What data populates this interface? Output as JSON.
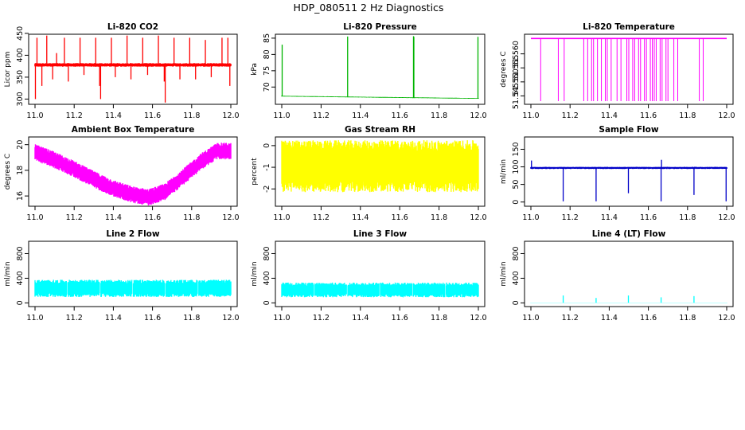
{
  "figure": {
    "title": "HDP_080511  2 Hz Diagnostics"
  },
  "chart_data": [
    {
      "type": "line",
      "title": "Li-820 CO2",
      "ylabel": "Licor ppm",
      "color": "#ff0000",
      "xlim": [
        11.0,
        12.0
      ],
      "ylim": [
        288,
        448
      ],
      "xticks": [
        "11.0",
        "11.2",
        "11.4",
        "11.6",
        "11.8",
        "12.0"
      ],
      "yticks": [
        300,
        350,
        400,
        450
      ],
      "base": 378,
      "noise": 4,
      "signal": "flat",
      "spikes": [
        {
          "x": 11.002,
          "v": 300
        },
        {
          "x": 11.01,
          "v": 440
        },
        {
          "x": 11.035,
          "v": 330
        },
        {
          "x": 11.06,
          "v": 445
        },
        {
          "x": 11.09,
          "v": 345
        },
        {
          "x": 11.11,
          "v": 405
        },
        {
          "x": 11.15,
          "v": 440
        },
        {
          "x": 11.17,
          "v": 340
        },
        {
          "x": 11.23,
          "v": 440
        },
        {
          "x": 11.25,
          "v": 355
        },
        {
          "x": 11.31,
          "v": 440
        },
        {
          "x": 11.33,
          "v": 330
        },
        {
          "x": 11.335,
          "v": 300
        },
        {
          "x": 11.39,
          "v": 440
        },
        {
          "x": 11.41,
          "v": 350
        },
        {
          "x": 11.47,
          "v": 445
        },
        {
          "x": 11.49,
          "v": 345
        },
        {
          "x": 11.55,
          "v": 440
        },
        {
          "x": 11.575,
          "v": 355
        },
        {
          "x": 11.63,
          "v": 445
        },
        {
          "x": 11.66,
          "v": 340
        },
        {
          "x": 11.665,
          "v": 292
        },
        {
          "x": 11.71,
          "v": 440
        },
        {
          "x": 11.74,
          "v": 345
        },
        {
          "x": 11.79,
          "v": 440
        },
        {
          "x": 11.82,
          "v": 345
        },
        {
          "x": 11.87,
          "v": 435
        },
        {
          "x": 11.9,
          "v": 350
        },
        {
          "x": 11.955,
          "v": 440
        },
        {
          "x": 11.985,
          "v": 440
        },
        {
          "x": 11.995,
          "v": 330
        }
      ]
    },
    {
      "type": "line",
      "title": "Li-820 Pressure",
      "ylabel": "kPa",
      "color": "#00b400",
      "xlim": [
        11.0,
        12.0
      ],
      "ylim": [
        64.7,
        86.2
      ],
      "xticks": [
        "11.0",
        "11.2",
        "11.4",
        "11.6",
        "11.8",
        "12.0"
      ],
      "yticks": [
        70,
        75,
        80,
        85
      ],
      "base_start": 67.2,
      "base_end": 66.5,
      "noise": 0.12,
      "signal": "flat",
      "spikes": [
        {
          "x": 11.002,
          "v": 83.0
        },
        {
          "x": 11.335,
          "v": 85.5
        },
        {
          "x": 11.67,
          "v": 85.6
        },
        {
          "x": 11.672,
          "v": 85.4
        },
        {
          "x": 11.998,
          "v": 85.4
        }
      ]
    },
    {
      "type": "line",
      "title": "Li-820 Temperature",
      "ylabel": "degrees C",
      "color": "#ff00ff",
      "xlim": [
        11.0,
        12.0
      ],
      "ylim": [
        51.542,
        51.567
      ],
      "xticks": [
        "11.0",
        "11.2",
        "11.4",
        "11.6",
        "11.8",
        "12.0"
      ],
      "yticks": [
        "51.545",
        "51.550",
        "51.555",
        "51.560"
      ],
      "base": 51.5655,
      "noise": 0,
      "signal": "flat",
      "dropouts": [
        11.05,
        11.14,
        11.17,
        11.27,
        11.29,
        11.31,
        11.32,
        11.34,
        11.36,
        11.38,
        11.39,
        11.41,
        11.44,
        11.46,
        11.49,
        11.5,
        11.52,
        11.53,
        11.55,
        11.56,
        11.58,
        11.59,
        11.61,
        11.62,
        11.63,
        11.64,
        11.66,
        11.67,
        11.69,
        11.7,
        11.73,
        11.75,
        11.86,
        11.88
      ],
      "drop_value": 51.542
    },
    {
      "type": "line",
      "title": "Ambient Box Temperature",
      "ylabel": "degrees C",
      "color": "#ff00ff",
      "xlim": [
        11.0,
        12.0
      ],
      "ylim": [
        15.2,
        20.6
      ],
      "xticks": [
        "11.0",
        "11.2",
        "11.4",
        "11.6",
        "11.8",
        "12.0"
      ],
      "yticks": [
        16,
        18,
        20
      ],
      "noise": 0.65,
      "signal": "curve",
      "curve": [
        [
          11.0,
          19.4
        ],
        [
          11.1,
          18.8
        ],
        [
          11.2,
          18.1
        ],
        [
          11.3,
          17.3
        ],
        [
          11.4,
          16.6
        ],
        [
          11.5,
          16.1
        ],
        [
          11.58,
          15.9
        ],
        [
          11.66,
          16.3
        ],
        [
          11.75,
          17.4
        ],
        [
          11.85,
          18.7
        ],
        [
          11.93,
          19.5
        ],
        [
          12.0,
          19.5
        ]
      ]
    },
    {
      "type": "line",
      "title": "Gas Stream RH",
      "ylabel": "percent",
      "color": "#ffff00",
      "xlim": [
        11.0,
        12.0
      ],
      "ylim": [
        -2.8,
        0.4
      ],
      "xticks": [
        "11.0",
        "11.2",
        "11.4",
        "11.6",
        "11.8",
        "12.0"
      ],
      "yticks": [
        -2,
        -1,
        0
      ],
      "base": -0.95,
      "noise": 1.2,
      "signal": "band"
    },
    {
      "type": "line",
      "title": "Sample Flow",
      "ylabel": "ml/min",
      "color": "#0000c8",
      "xlim": [
        11.0,
        12.0
      ],
      "ylim": [
        -12,
        185
      ],
      "xticks": [
        "11.0",
        "11.2",
        "11.4",
        "11.6",
        "11.8",
        "12.0"
      ],
      "yticks": [
        0,
        50,
        100,
        150
      ],
      "base": 97,
      "noise": 3,
      "signal": "flat",
      "spikes": [
        {
          "x": 11.003,
          "v": 118
        },
        {
          "x": 11.165,
          "v": 2
        },
        {
          "x": 11.333,
          "v": 2
        },
        {
          "x": 11.498,
          "v": 25
        },
        {
          "x": 11.665,
          "v": 2
        },
        {
          "x": 11.667,
          "v": 120
        },
        {
          "x": 11.833,
          "v": 20
        },
        {
          "x": 11.997,
          "v": 2
        }
      ]
    },
    {
      "type": "line",
      "title": "Line 2 Flow",
      "ylabel": "ml/min",
      "color": "#00ffff",
      "xlim": [
        11.0,
        12.0
      ],
      "ylim": [
        -60,
        1000
      ],
      "xticks": [
        "11.0",
        "11.2",
        "11.4",
        "11.6",
        "11.8",
        "12.0"
      ],
      "yticks": [
        0,
        400,
        800
      ],
      "base": 235,
      "noise": 140,
      "signal": "band",
      "gaps": [
        11.165,
        11.333,
        11.498,
        11.665,
        11.833
      ]
    },
    {
      "type": "line",
      "title": "Line 3 Flow",
      "ylabel": "ml/min",
      "color": "#00ffff",
      "xlim": [
        11.0,
        12.0
      ],
      "ylim": [
        -60,
        1000
      ],
      "xticks": [
        "11.0",
        "11.2",
        "11.4",
        "11.6",
        "11.8",
        "12.0"
      ],
      "yticks": [
        0,
        400,
        800
      ],
      "base": 210,
      "noise": 120,
      "signal": "band",
      "gaps": [
        11.165,
        11.333,
        11.498,
        11.665,
        11.833
      ]
    },
    {
      "type": "line",
      "title": "Line 4 (LT) Flow",
      "ylabel": "ml/min",
      "color": "#00ffff",
      "xlim": [
        11.0,
        12.0
      ],
      "ylim": [
        -60,
        1000
      ],
      "xticks": [
        "11.0",
        "11.2",
        "11.4",
        "11.6",
        "11.8",
        "12.0"
      ],
      "yticks": [
        0,
        400,
        800
      ],
      "base": 3,
      "noise": 2,
      "signal": "flat",
      "spikes": [
        {
          "x": 11.165,
          "v": 120
        },
        {
          "x": 11.333,
          "v": 80
        },
        {
          "x": 11.498,
          "v": 120
        },
        {
          "x": 11.665,
          "v": 90
        },
        {
          "x": 11.833,
          "v": 110
        }
      ]
    }
  ]
}
